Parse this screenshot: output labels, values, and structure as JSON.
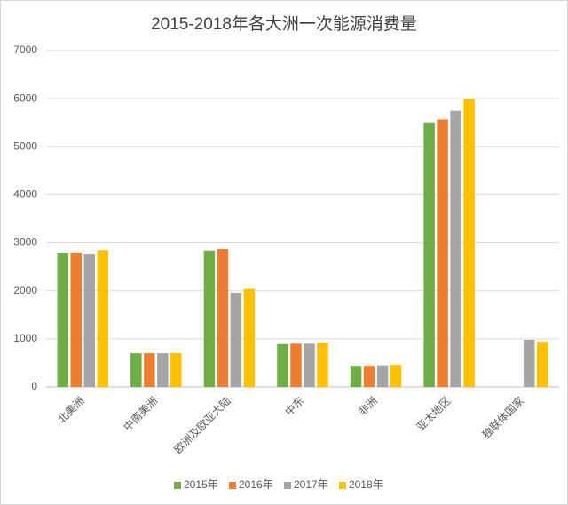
{
  "chart_data": {
    "type": "bar",
    "title": "2015-2018年各大洲一次能源消费量",
    "categories": [
      "北美洲",
      "中南美洲",
      "欧洲及欧亚大陆",
      "中东",
      "非洲",
      "亚太地区",
      "独联体国家"
    ],
    "series": [
      {
        "name": "2015年",
        "color": "#70ad47",
        "values": [
          2790,
          700,
          2830,
          890,
          440,
          5490,
          null
        ]
      },
      {
        "name": "2016年",
        "color": "#ed7d31",
        "values": [
          2790,
          700,
          2870,
          900,
          440,
          5570,
          null
        ]
      },
      {
        "name": "2017年",
        "color": "#a5a5a5",
        "values": [
          2770,
          700,
          1960,
          900,
          450,
          5750,
          980
        ]
      },
      {
        "name": "2018年",
        "color": "#ffc000",
        "values": [
          2840,
          700,
          2040,
          920,
          460,
          5990,
          940
        ]
      }
    ],
    "ylim": [
      0,
      7000
    ],
    "yticks": [
      0,
      1000,
      2000,
      3000,
      4000,
      5000,
      6000,
      7000
    ],
    "grid": true,
    "legend": "bottom"
  }
}
